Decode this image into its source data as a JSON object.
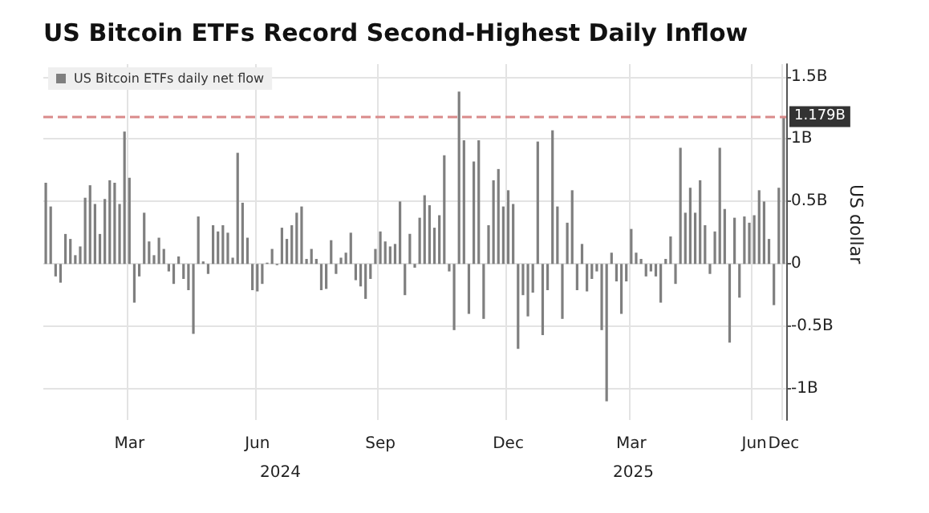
{
  "chart_data": {
    "type": "bar",
    "title": "US Bitcoin ETFs Record Second-Highest Daily Inflow",
    "ylabel": "US dollar",
    "annotations": [
      "2024",
      "2025"
    ],
    "categories": [
      null,
      null,
      null,
      null,
      null,
      null,
      null,
      null,
      null,
      null,
      null,
      null,
      null,
      null,
      null,
      null,
      null,
      "Mar",
      null,
      null,
      null,
      null,
      null,
      null,
      null,
      null,
      null,
      null,
      null,
      null,
      null,
      null,
      null,
      null,
      null,
      null,
      null,
      null,
      null,
      null,
      null,
      null,
      null,
      "Jun",
      null,
      null,
      null,
      null,
      null,
      null,
      null,
      null,
      null,
      null,
      null,
      null,
      null,
      null,
      null,
      null,
      null,
      null,
      null,
      null,
      null,
      null,
      null,
      null,
      "Sep",
      null,
      null,
      null,
      null,
      null,
      null,
      null,
      null,
      null,
      null,
      null,
      null,
      null,
      null,
      null,
      null,
      null,
      null,
      null,
      null,
      null,
      null,
      null,
      null,
      null,
      "Dec",
      null,
      null,
      null,
      null,
      null,
      null,
      null,
      null,
      null,
      null,
      null,
      null,
      null,
      null,
      null,
      null,
      null,
      null,
      null,
      null,
      null,
      null,
      null,
      null,
      "Mar",
      null,
      null,
      null,
      null,
      null,
      null,
      null,
      null,
      null,
      null,
      null,
      null,
      null,
      null,
      null,
      null,
      null,
      null,
      null,
      null,
      null,
      null,
      null,
      null,
      "Jun",
      null,
      null,
      null,
      null,
      null,
      "Dec"
    ],
    "series": [
      {
        "name": "US Bitcoin ETFs daily net flow",
        "color": "#7f7f7f",
        "values": [
          0.65,
          0.46,
          -0.1,
          -0.15,
          0.24,
          0.2,
          0.07,
          0.14,
          0.53,
          0.63,
          0.48,
          0.24,
          0.52,
          0.67,
          0.65,
          0.48,
          1.06,
          0.69,
          -0.31,
          -0.1,
          0.41,
          0.18,
          0.07,
          0.21,
          0.12,
          -0.06,
          -0.16,
          0.06,
          -0.12,
          -0.21,
          -0.56,
          0.38,
          0.02,
          -0.08,
          0.31,
          0.26,
          0.31,
          0.25,
          0.05,
          0.89,
          0.49,
          0.21,
          -0.21,
          -0.22,
          -0.16,
          0.01,
          0.12,
          -0.01,
          0.29,
          0.2,
          0.31,
          0.41,
          0.46,
          0.04,
          0.12,
          0.04,
          -0.21,
          -0.2,
          0.19,
          -0.08,
          0.05,
          0.09,
          0.25,
          -0.13,
          -0.18,
          -0.28,
          -0.12,
          0.12,
          0.26,
          0.18,
          0.14,
          0.16,
          0.5,
          -0.25,
          0.24,
          -0.03,
          0.37,
          0.55,
          0.47,
          0.29,
          0.39,
          0.87,
          -0.06,
          -0.53,
          1.38,
          0.99,
          -0.4,
          0.82,
          0.99,
          -0.44,
          0.31,
          0.67,
          0.76,
          0.46,
          0.59,
          0.48,
          -0.68,
          -0.25,
          -0.42,
          -0.23,
          0.98,
          -0.57,
          -0.21,
          1.07,
          0.46,
          -0.44,
          0.33,
          0.59,
          -0.21,
          0.16,
          -0.22,
          -0.12,
          -0.06,
          -0.53,
          -1.1,
          0.09,
          -0.14,
          -0.4,
          -0.14,
          0.28,
          0.09,
          0.04,
          -0.1,
          -0.06,
          -0.1,
          -0.31,
          0.04,
          0.22,
          -0.16,
          0.93,
          0.41,
          0.61,
          0.41,
          0.67,
          0.31,
          -0.08,
          0.26,
          0.93,
          0.44,
          -0.63,
          0.37,
          -0.27,
          0.38,
          0.33,
          0.39,
          0.59,
          0.5,
          0.2,
          -0.33,
          0.61,
          1.179
        ]
      }
    ],
    "ylim": [
      -1.25,
      1.6
    ],
    "yticks": [
      {
        "value": -1,
        "label": "-1B"
      },
      {
        "value": -0.5,
        "label": "-0.5B"
      },
      0,
      {
        "value": 0.5,
        "label": "0.5B"
      },
      {
        "value": 1,
        "label": "1B"
      },
      {
        "value": 1.5,
        "label": "1.5B"
      }
    ],
    "ref_lines": [
      {
        "axis": "y",
        "value": 1.179,
        "label": "1.179B",
        "color": "#d98a8a",
        "line_style": "dashed"
      }
    ],
    "grid": true,
    "legend": "top left"
  }
}
